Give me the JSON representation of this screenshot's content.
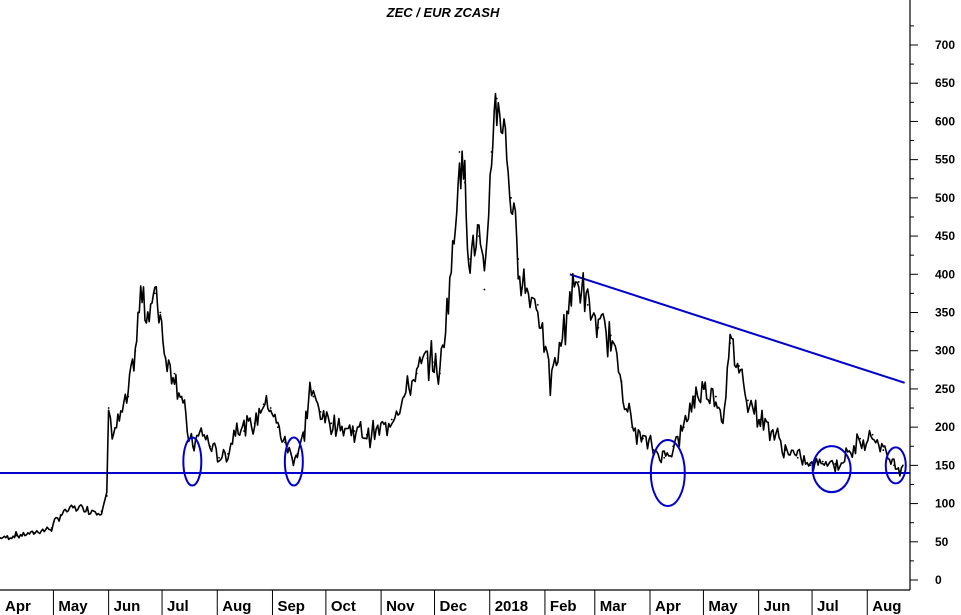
{
  "chart_data": {
    "type": "line",
    "title": "ZEC / EUR ZCASH",
    "xlabel": "",
    "ylabel": "",
    "ylim": [
      0,
      750
    ],
    "y_ticks": [
      0,
      50,
      100,
      150,
      200,
      250,
      300,
      350,
      400,
      450,
      500,
      550,
      600,
      650,
      700
    ],
    "grid": false,
    "x_tick_labels": [
      "Apr",
      "May",
      "Jun",
      "Jul",
      "Aug",
      "Sep",
      "Oct",
      "Nov",
      "Dec",
      "2018",
      "Feb",
      "Mar",
      "Apr",
      "May",
      "Jun",
      "Jul",
      "Aug"
    ],
    "x_domain": [
      "2017-04-01",
      "2018-08-25"
    ],
    "series": [
      {
        "values": [
          [
            "2017-04-01",
            55
          ],
          [
            "2017-04-10",
            58
          ],
          [
            "2017-04-20",
            62
          ],
          [
            "2017-04-30",
            68
          ],
          [
            "2017-05-05",
            85
          ],
          [
            "2017-05-12",
            95
          ],
          [
            "2017-05-20",
            92
          ],
          [
            "2017-05-28",
            90
          ],
          [
            "2017-05-31",
            110
          ],
          [
            "2017-06-01",
            225
          ],
          [
            "2017-06-03",
            190
          ],
          [
            "2017-06-07",
            210
          ],
          [
            "2017-06-12",
            240
          ],
          [
            "2017-06-16",
            300
          ],
          [
            "2017-06-19",
            370
          ],
          [
            "2017-06-23",
            350
          ],
          [
            "2017-06-27",
            375
          ],
          [
            "2017-06-30",
            350
          ],
          [
            "2017-07-03",
            290
          ],
          [
            "2017-07-08",
            270
          ],
          [
            "2017-07-12",
            240
          ],
          [
            "2017-07-16",
            185
          ],
          [
            "2017-07-19",
            175
          ],
          [
            "2017-07-23",
            195
          ],
          [
            "2017-07-28",
            175
          ],
          [
            "2017-08-02",
            160
          ],
          [
            "2017-08-07",
            165
          ],
          [
            "2017-08-12",
            205
          ],
          [
            "2017-08-16",
            195
          ],
          [
            "2017-08-22",
            205
          ],
          [
            "2017-08-27",
            230
          ],
          [
            "2017-08-31",
            225
          ],
          [
            "2017-09-04",
            200
          ],
          [
            "2017-09-08",
            180
          ],
          [
            "2017-09-12",
            160
          ],
          [
            "2017-09-15",
            165
          ],
          [
            "2017-09-19",
            195
          ],
          [
            "2017-09-22",
            250
          ],
          [
            "2017-09-24",
            240
          ],
          [
            "2017-09-28",
            220
          ],
          [
            "2017-10-04",
            205
          ],
          [
            "2017-10-10",
            200
          ],
          [
            "2017-10-17",
            195
          ],
          [
            "2017-10-24",
            190
          ],
          [
            "2017-10-31",
            195
          ],
          [
            "2017-11-07",
            210
          ],
          [
            "2017-11-14",
            240
          ],
          [
            "2017-11-21",
            270
          ],
          [
            "2017-11-27",
            290
          ],
          [
            "2017-11-30",
            285
          ],
          [
            "2017-12-04",
            270
          ],
          [
            "2017-12-08",
            360
          ],
          [
            "2017-12-12",
            440
          ],
          [
            "2017-12-15",
            560
          ],
          [
            "2017-12-18",
            520
          ],
          [
            "2017-12-21",
            420
          ],
          [
            "2017-12-26",
            450
          ],
          [
            "2017-12-29",
            380
          ],
          [
            "2018-01-02",
            560
          ],
          [
            "2018-01-05",
            630
          ],
          [
            "2018-01-09",
            600
          ],
          [
            "2018-01-13",
            500
          ],
          [
            "2018-01-17",
            420
          ],
          [
            "2018-01-21",
            380
          ],
          [
            "2018-01-28",
            360
          ],
          [
            "2018-02-04",
            260
          ],
          [
            "2018-02-10",
            310
          ],
          [
            "2018-02-15",
            370
          ],
          [
            "2018-02-20",
            390
          ],
          [
            "2018-02-25",
            360
          ],
          [
            "2018-03-03",
            330
          ],
          [
            "2018-03-10",
            320
          ],
          [
            "2018-03-16",
            260
          ],
          [
            "2018-03-22",
            200
          ],
          [
            "2018-03-28",
            185
          ],
          [
            "2018-04-03",
            170
          ],
          [
            "2018-04-09",
            160
          ],
          [
            "2018-04-14",
            175
          ],
          [
            "2018-04-20",
            200
          ],
          [
            "2018-04-26",
            240
          ],
          [
            "2018-05-02",
            250
          ],
          [
            "2018-05-08",
            240
          ],
          [
            "2018-05-12",
            210
          ],
          [
            "2018-05-16",
            310
          ],
          [
            "2018-05-21",
            280
          ],
          [
            "2018-05-26",
            235
          ],
          [
            "2018-06-02",
            210
          ],
          [
            "2018-06-09",
            195
          ],
          [
            "2018-06-16",
            170
          ],
          [
            "2018-06-23",
            160
          ],
          [
            "2018-06-30",
            150
          ],
          [
            "2018-07-07",
            155
          ],
          [
            "2018-07-14",
            152
          ],
          [
            "2018-07-21",
            160
          ],
          [
            "2018-07-28",
            185
          ],
          [
            "2018-08-04",
            190
          ],
          [
            "2018-08-10",
            170
          ],
          [
            "2018-08-16",
            150
          ],
          [
            "2018-08-21",
            150
          ]
        ]
      }
    ],
    "annotations": {
      "support_line": {
        "value": 140,
        "color": "#0000cc"
      },
      "resistance_line": {
        "from": [
          "2018-02-15",
          400
        ],
        "to": [
          "2018-08-22",
          258
        ],
        "color": "#0000cc"
      },
      "circles": [
        {
          "date": "2017-07-18",
          "value": 155,
          "color": "#0000cc"
        },
        {
          "date": "2017-09-13",
          "value": 155,
          "color": "#0000cc"
        },
        {
          "date": "2018-04-11",
          "value": 140,
          "color": "#0000cc"
        },
        {
          "date": "2018-07-12",
          "value": 145,
          "color": "#0000cc"
        },
        {
          "date": "2018-08-17",
          "value": 150,
          "color": "#0000cc"
        }
      ]
    },
    "colors": {
      "price": "#000000",
      "annotation": "#0000cc",
      "axis": "#000000"
    }
  }
}
